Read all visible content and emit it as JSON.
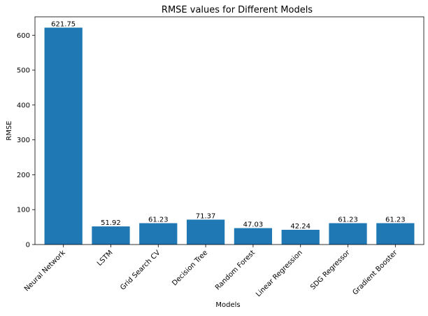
{
  "chart_data": {
    "type": "bar",
    "title": "RMSE values for Different Models",
    "xlabel": "Models",
    "ylabel": "RMSE",
    "categories": [
      "Neural Network",
      "LSTM",
      "Grid Search CV",
      "Decision Tree",
      "Random Forest",
      "Linear Regression",
      "SDG Regressor",
      "Gradient Booster"
    ],
    "values": [
      621.75,
      51.92,
      61.23,
      71.37,
      47.03,
      42.24,
      61.23,
      61.23
    ],
    "value_labels": [
      "621.75",
      "51.92",
      "61.23",
      "71.37",
      "47.03",
      "42.24",
      "61.23",
      "61.23"
    ],
    "ylim": [
      0,
      652.8
    ],
    "yticks": [
      0,
      100,
      200,
      300,
      400,
      500,
      600
    ],
    "grid": false,
    "legend": "none",
    "bar_color": "#1f77b4"
  }
}
